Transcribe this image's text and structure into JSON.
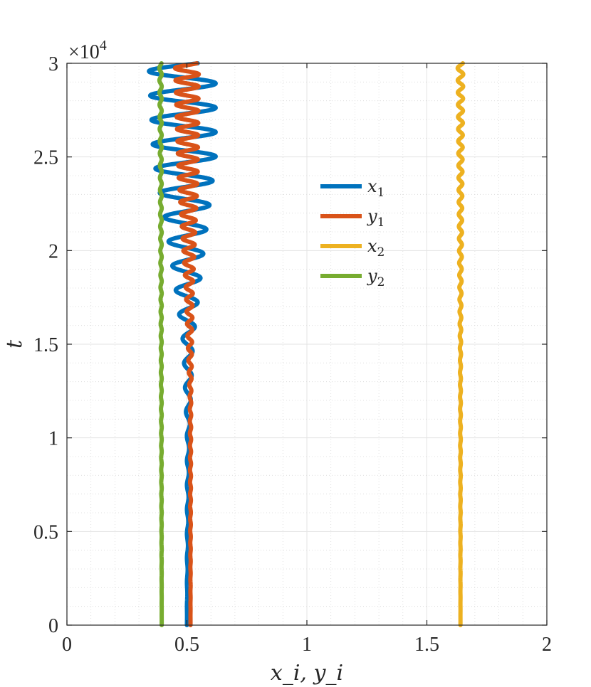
{
  "chart_data": {
    "type": "line",
    "title": "",
    "xlabel": "x_i, y_i",
    "ylabel": "t",
    "xlim": [
      0,
      2
    ],
    "ylim": [
      0,
      30000
    ],
    "x_ticks": [
      "0",
      "0.5",
      "1",
      "1.5",
      "2"
    ],
    "y_ticks": [
      "0",
      "0.5",
      "1",
      "1.5",
      "2",
      "2.5",
      "3"
    ],
    "y_multiplier": "×10",
    "y_multiplier_exp": "4",
    "grid": true,
    "minor_grid": true,
    "legend_position": "center-right",
    "series": [
      {
        "name": "x",
        "name_sub": "1",
        "color": "#0072BD",
        "oscillation": [
          {
            "t": 0,
            "center": 0.5,
            "amplitude": 0.0
          },
          {
            "t": 10000,
            "center": 0.505,
            "amplitude": 0.005
          },
          {
            "t": 15000,
            "center": 0.505,
            "amplitude": 0.02
          },
          {
            "t": 20000,
            "center": 0.5,
            "amplitude": 0.07
          },
          {
            "t": 25000,
            "center": 0.49,
            "amplitude": 0.13
          },
          {
            "t": 30000,
            "center": 0.48,
            "amplitude": 0.14
          }
        ]
      },
      {
        "name": "y",
        "name_sub": "1",
        "color": "#D95319",
        "oscillation": [
          {
            "t": 0,
            "center": 0.515,
            "amplitude": 0.0
          },
          {
            "t": 12000,
            "center": 0.515,
            "amplitude": 0.003
          },
          {
            "t": 18000,
            "center": 0.51,
            "amplitude": 0.015
          },
          {
            "t": 24000,
            "center": 0.505,
            "amplitude": 0.04
          },
          {
            "t": 30000,
            "center": 0.5,
            "amplitude": 0.05
          }
        ]
      },
      {
        "name": "x",
        "name_sub": "2",
        "color": "#EDB120",
        "oscillation": [
          {
            "t": 0,
            "center": 1.64,
            "amplitude": 0.0
          },
          {
            "t": 14000,
            "center": 1.64,
            "amplitude": 0.002
          },
          {
            "t": 20000,
            "center": 1.64,
            "amplitude": 0.006
          },
          {
            "t": 30000,
            "center": 1.64,
            "amplitude": 0.012
          }
        ]
      },
      {
        "name": "y",
        "name_sub": "2",
        "color": "#77AC30",
        "oscillation": [
          {
            "t": 0,
            "center": 0.395,
            "amplitude": 0.0
          },
          {
            "t": 15000,
            "center": 0.393,
            "amplitude": 0.002
          },
          {
            "t": 30000,
            "center": 0.39,
            "amplitude": 0.005
          }
        ]
      }
    ]
  }
}
